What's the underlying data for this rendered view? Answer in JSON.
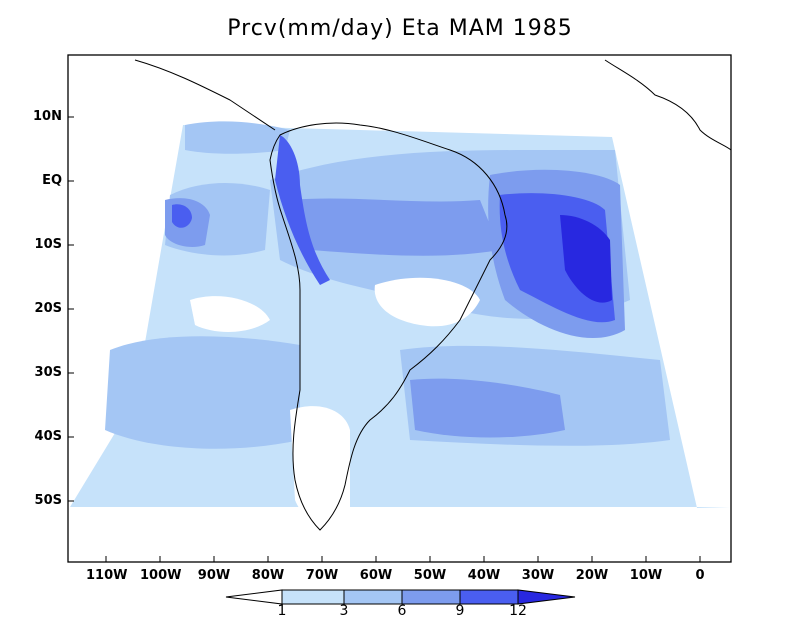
{
  "title": "Prcv(mm/day) Eta MAM 1985",
  "lat_labels": [
    "10N",
    "EQ",
    "10S",
    "20S",
    "30S",
    "40S",
    "50S"
  ],
  "lon_labels": [
    "110W",
    "100W",
    "90W",
    "80W",
    "70W",
    "60W",
    "50W",
    "40W",
    "30W",
    "20W",
    "10W",
    "0"
  ],
  "colorbar": {
    "levels": [
      "1",
      "3",
      "6",
      "9",
      "12"
    ],
    "colors": [
      "#ffffff",
      "#c6e2fa",
      "#a4c6f4",
      "#7d9cee",
      "#4a5ef0",
      "#2828e0"
    ]
  },
  "colors": {
    "ocean_base": "#ffffff",
    "light": "#c6e2fa",
    "medium": "#a4c6f4",
    "strong": "#7d9cee",
    "heavy": "#4a5ef0",
    "extreme": "#2828e0",
    "coast": "#000000"
  }
}
